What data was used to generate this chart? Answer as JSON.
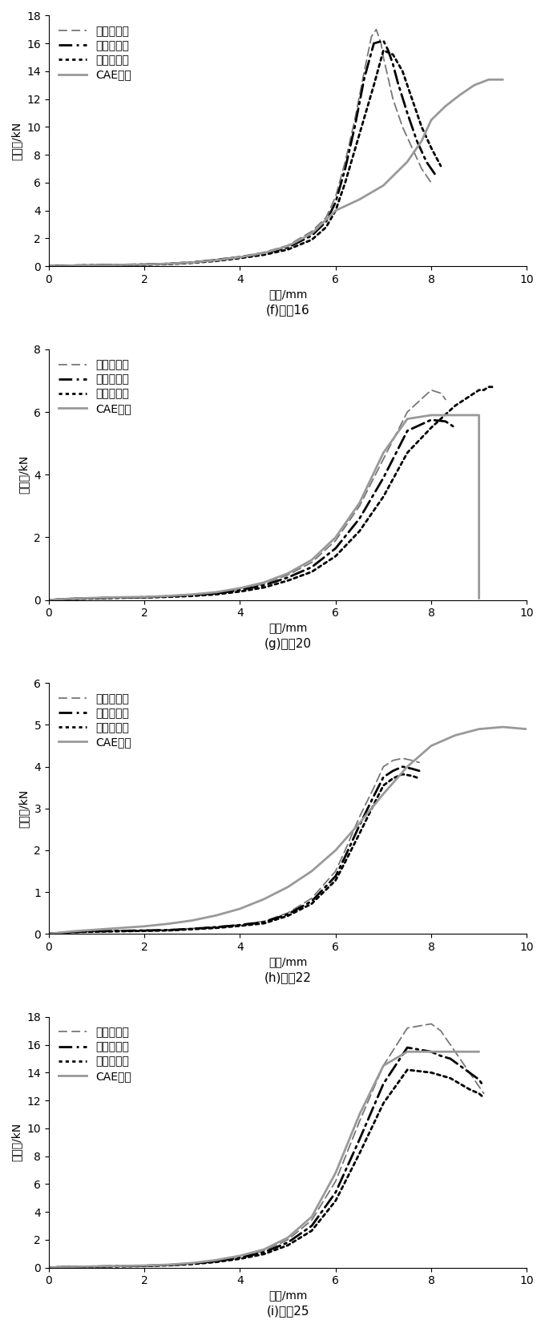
{
  "panels": [
    {
      "label": "(f)组全16",
      "ylim": [
        0,
        18
      ],
      "yticks": [
        0,
        2,
        4,
        6,
        8,
        10,
        12,
        14,
        16,
        18
      ],
      "xlim": [
        0,
        10
      ],
      "xticks": [
        0,
        2,
        4,
        6,
        8,
        10
      ],
      "curves": {
        "max": {
          "x": [
            0,
            0.3,
            0.8,
            1.5,
            2,
            2.5,
            3,
            3.5,
            4,
            4.5,
            5,
            5.5,
            5.8,
            6.0,
            6.2,
            6.4,
            6.6,
            6.75,
            6.85,
            6.95,
            7.0,
            7.1,
            7.2,
            7.4,
            7.6,
            7.8,
            8.0
          ],
          "y": [
            0,
            0.05,
            0.08,
            0.12,
            0.15,
            0.2,
            0.3,
            0.5,
            0.7,
            1.0,
            1.5,
            2.5,
            3.5,
            5.0,
            7.5,
            10.5,
            14.0,
            16.5,
            17.0,
            16.0,
            15.0,
            13.5,
            12.0,
            10.0,
            8.5,
            7.0,
            6.0
          ],
          "style": "dashed",
          "color": "#777777",
          "lw": 1.3
        },
        "mean": {
          "x": [
            0,
            0.3,
            0.8,
            1.5,
            2,
            2.5,
            3,
            3.5,
            4,
            4.5,
            5,
            5.5,
            5.8,
            6.0,
            6.2,
            6.4,
            6.6,
            6.8,
            7.0,
            7.1,
            7.2,
            7.3,
            7.5,
            7.7,
            7.9,
            8.1
          ],
          "y": [
            0,
            0.04,
            0.07,
            0.1,
            0.13,
            0.18,
            0.28,
            0.44,
            0.65,
            0.92,
            1.35,
            2.2,
            3.2,
            4.6,
            7.0,
            10.0,
            13.5,
            16.0,
            16.2,
            15.5,
            14.5,
            13.2,
            11.0,
            9.0,
            7.5,
            6.5
          ],
          "style": "dashdot",
          "color": "#000000",
          "lw": 2.0
        },
        "min": {
          "x": [
            0,
            0.3,
            0.8,
            1.5,
            2,
            2.5,
            3,
            3.5,
            4,
            4.5,
            5,
            5.5,
            5.8,
            6.0,
            6.2,
            6.5,
            6.8,
            7.0,
            7.2,
            7.4,
            7.6,
            7.8,
            8.0,
            8.2
          ],
          "y": [
            0,
            0.04,
            0.06,
            0.09,
            0.11,
            0.15,
            0.24,
            0.38,
            0.58,
            0.82,
            1.2,
            1.9,
            2.8,
            4.0,
            6.0,
            9.5,
            13.0,
            15.5,
            15.2,
            14.0,
            12.0,
            10.0,
            8.5,
            7.2
          ],
          "style": "dotted",
          "color": "#000000",
          "lw": 2.0
        },
        "cae": {
          "x": [
            0,
            0.5,
            1,
            1.5,
            2,
            2.5,
            3,
            3.5,
            4,
            4.5,
            5,
            5.5,
            6,
            6.5,
            7.0,
            7.5,
            7.8,
            8.0,
            8.3,
            8.6,
            8.9,
            9.2,
            9.5
          ],
          "y": [
            0,
            0.05,
            0.08,
            0.1,
            0.13,
            0.18,
            0.27,
            0.43,
            0.65,
            0.95,
            1.45,
            2.35,
            4.0,
            4.8,
            5.8,
            7.5,
            9.0,
            10.5,
            11.5,
            12.3,
            13.0,
            13.4,
            13.4
          ],
          "style": "solid",
          "color": "#999999",
          "lw": 2.0
        }
      }
    },
    {
      "label": "(g)组全20",
      "ylim": [
        0,
        8
      ],
      "yticks": [
        0,
        2,
        4,
        6,
        8
      ],
      "xlim": [
        0,
        10
      ],
      "xticks": [
        0,
        2,
        4,
        6,
        8,
        10
      ],
      "curves": {
        "max": {
          "x": [
            0,
            0.5,
            1,
            1.5,
            2,
            2.5,
            3,
            3.5,
            4,
            4.5,
            5,
            5.5,
            6,
            6.5,
            7,
            7.5,
            8.0,
            8.2,
            8.3
          ],
          "y": [
            0,
            0.05,
            0.07,
            0.09,
            0.1,
            0.13,
            0.17,
            0.23,
            0.35,
            0.52,
            0.8,
            1.2,
            1.9,
            3.0,
            4.5,
            6.0,
            6.7,
            6.6,
            6.4
          ],
          "style": "dashed",
          "color": "#777777",
          "lw": 1.3
        },
        "mean": {
          "x": [
            0,
            0.5,
            1,
            1.5,
            2,
            2.5,
            3,
            3.5,
            4,
            4.5,
            5,
            5.5,
            6,
            6.5,
            7,
            7.5,
            8.0,
            8.3,
            8.5
          ],
          "y": [
            0,
            0.04,
            0.06,
            0.08,
            0.09,
            0.12,
            0.16,
            0.21,
            0.32,
            0.47,
            0.72,
            1.05,
            1.65,
            2.6,
            3.9,
            5.4,
            5.75,
            5.7,
            5.5
          ],
          "style": "dashdot",
          "color": "#000000",
          "lw": 2.0
        },
        "min": {
          "x": [
            0,
            0.5,
            1,
            1.5,
            2,
            2.5,
            3,
            3.5,
            4,
            4.5,
            5,
            5.5,
            6,
            6.5,
            7,
            7.5,
            8.0,
            8.5,
            9.0,
            9.1,
            9.2,
            9.3
          ],
          "y": [
            0,
            0.04,
            0.05,
            0.07,
            0.08,
            0.1,
            0.13,
            0.18,
            0.27,
            0.4,
            0.62,
            0.9,
            1.4,
            2.2,
            3.3,
            4.7,
            5.5,
            6.2,
            6.7,
            6.7,
            6.8,
            6.8
          ],
          "style": "dotted",
          "color": "#000000",
          "lw": 2.0
        },
        "cae": {
          "x": [
            0,
            0.5,
            1,
            1.5,
            2,
            2.5,
            3,
            3.5,
            4,
            4.5,
            5,
            5.5,
            6,
            6.5,
            7,
            7.5,
            8.0,
            8.5,
            9.0,
            9.0
          ],
          "y": [
            0,
            0.05,
            0.07,
            0.09,
            0.1,
            0.13,
            0.18,
            0.25,
            0.38,
            0.56,
            0.85,
            1.28,
            2.0,
            3.1,
            4.7,
            5.78,
            5.9,
            5.9,
            5.9,
            0.05
          ],
          "style": "solid",
          "color": "#999999",
          "lw": 2.0
        }
      }
    },
    {
      "label": "(h)组全22",
      "ylim": [
        0,
        6
      ],
      "yticks": [
        0,
        1,
        2,
        3,
        4,
        5,
        6
      ],
      "xlim": [
        0,
        10
      ],
      "xticks": [
        0,
        2,
        4,
        6,
        8,
        10
      ],
      "curves": {
        "max": {
          "x": [
            0,
            0.5,
            1,
            1.5,
            2,
            2.5,
            3,
            3.5,
            4,
            4.5,
            5,
            5.5,
            6,
            6.2,
            6.5,
            6.8,
            7.0,
            7.2,
            7.4,
            7.6,
            7.75
          ],
          "y": [
            0,
            0.05,
            0.07,
            0.08,
            0.09,
            0.1,
            0.13,
            0.17,
            0.22,
            0.3,
            0.5,
            0.85,
            1.5,
            2.0,
            2.8,
            3.5,
            4.0,
            4.15,
            4.2,
            4.15,
            4.1
          ],
          "style": "dashed",
          "color": "#777777",
          "lw": 1.3
        },
        "mean": {
          "x": [
            0,
            0.5,
            1,
            1.5,
            2,
            2.5,
            3,
            3.5,
            4,
            4.5,
            5,
            5.5,
            6,
            6.2,
            6.5,
            6.8,
            7.0,
            7.2,
            7.4,
            7.6,
            7.75
          ],
          "y": [
            0,
            0.04,
            0.06,
            0.07,
            0.08,
            0.09,
            0.12,
            0.16,
            0.21,
            0.28,
            0.47,
            0.78,
            1.38,
            1.85,
            2.6,
            3.3,
            3.75,
            3.9,
            4.0,
            3.95,
            3.9
          ],
          "style": "dashdot",
          "color": "#000000",
          "lw": 2.0
        },
        "min": {
          "x": [
            0,
            0.5,
            1,
            1.5,
            2,
            2.5,
            3,
            3.5,
            4,
            4.5,
            5,
            5.5,
            6,
            6.2,
            6.5,
            6.8,
            7.0,
            7.2,
            7.4,
            7.6,
            7.75
          ],
          "y": [
            0,
            0.04,
            0.05,
            0.06,
            0.07,
            0.08,
            0.11,
            0.14,
            0.19,
            0.25,
            0.43,
            0.72,
            1.28,
            1.72,
            2.4,
            3.1,
            3.55,
            3.72,
            3.82,
            3.78,
            3.72
          ],
          "style": "dotted",
          "color": "#000000",
          "lw": 2.0
        },
        "cae": {
          "x": [
            0,
            0.5,
            1,
            1.5,
            2,
            2.5,
            3,
            3.5,
            4,
            4.5,
            5,
            5.5,
            6,
            6.5,
            7.0,
            7.5,
            8.0,
            8.5,
            9.0,
            9.5,
            10.0
          ],
          "y": [
            0,
            0.06,
            0.1,
            0.14,
            0.18,
            0.24,
            0.32,
            0.44,
            0.6,
            0.83,
            1.12,
            1.5,
            2.0,
            2.65,
            3.35,
            4.0,
            4.5,
            4.75,
            4.9,
            4.95,
            4.9
          ],
          "style": "solid",
          "color": "#999999",
          "lw": 2.0
        }
      }
    },
    {
      "label": "(i)组全25",
      "ylim": [
        0,
        18
      ],
      "yticks": [
        0,
        2,
        4,
        6,
        8,
        10,
        12,
        14,
        16,
        18
      ],
      "xlim": [
        0,
        10
      ],
      "xticks": [
        0,
        2,
        4,
        6,
        8,
        10
      ],
      "curves": {
        "max": {
          "x": [
            0,
            0.3,
            0.8,
            1.5,
            2,
            2.5,
            3,
            3.5,
            4,
            4.5,
            5,
            5.5,
            6,
            6.5,
            7,
            7.5,
            8,
            8.2,
            8.4,
            8.6,
            8.8,
            9.0,
            9.1
          ],
          "y": [
            0,
            0.05,
            0.08,
            0.12,
            0.15,
            0.2,
            0.32,
            0.52,
            0.8,
            1.2,
            2.0,
            3.4,
            6.2,
            10.5,
            14.5,
            17.2,
            17.5,
            17.0,
            16.0,
            15.0,
            14.0,
            13.0,
            12.5
          ],
          "style": "dashed",
          "color": "#777777",
          "lw": 1.3
        },
        "mean": {
          "x": [
            0,
            0.3,
            0.8,
            1.5,
            2,
            2.5,
            3,
            3.5,
            4,
            4.5,
            5,
            5.5,
            6,
            6.5,
            7,
            7.5,
            8,
            8.2,
            8.4,
            8.6,
            8.8,
            9.0,
            9.1
          ],
          "y": [
            0,
            0.04,
            0.07,
            0.1,
            0.13,
            0.18,
            0.28,
            0.46,
            0.72,
            1.1,
            1.8,
            3.0,
            5.4,
            9.2,
            13.2,
            15.8,
            15.5,
            15.2,
            15.0,
            14.5,
            14.0,
            13.5,
            13.0
          ],
          "style": "dashdot",
          "color": "#000000",
          "lw": 2.0
        },
        "min": {
          "x": [
            0,
            0.3,
            0.8,
            1.5,
            2,
            2.5,
            3,
            3.5,
            4,
            4.5,
            5,
            5.5,
            6,
            6.5,
            7,
            7.5,
            8,
            8.2,
            8.4,
            8.6,
            8.8,
            9.0,
            9.1
          ],
          "y": [
            0,
            0.04,
            0.06,
            0.09,
            0.11,
            0.16,
            0.25,
            0.4,
            0.63,
            0.97,
            1.6,
            2.65,
            4.8,
            8.2,
            11.8,
            14.2,
            14.0,
            13.8,
            13.6,
            13.2,
            12.8,
            12.5,
            12.2
          ],
          "style": "dotted",
          "color": "#000000",
          "lw": 2.0
        },
        "cae": {
          "x": [
            0,
            0.5,
            1,
            1.5,
            2,
            2.5,
            3,
            3.5,
            4,
            4.5,
            5,
            5.5,
            6,
            6.5,
            7,
            7.5,
            8,
            8.2,
            8.4,
            8.6,
            8.8,
            9.0
          ],
          "y": [
            0,
            0.06,
            0.09,
            0.12,
            0.15,
            0.21,
            0.33,
            0.54,
            0.85,
            1.3,
            2.15,
            3.65,
            6.8,
            11.0,
            14.5,
            15.5,
            15.5,
            15.5,
            15.5,
            15.5,
            15.5,
            15.5
          ],
          "style": "solid",
          "color": "#999999",
          "lw": 2.0
        }
      }
    }
  ],
  "legend_labels": [
    "试验最大值",
    "试验平均值",
    "试验最小值",
    "CAE仿真"
  ],
  "ylabel": "挤压力/kN",
  "xlabel": "位移/mm",
  "bg_color": "#ffffff",
  "spine_color": "#000000",
  "font_size": 10,
  "label_font_size": 11
}
